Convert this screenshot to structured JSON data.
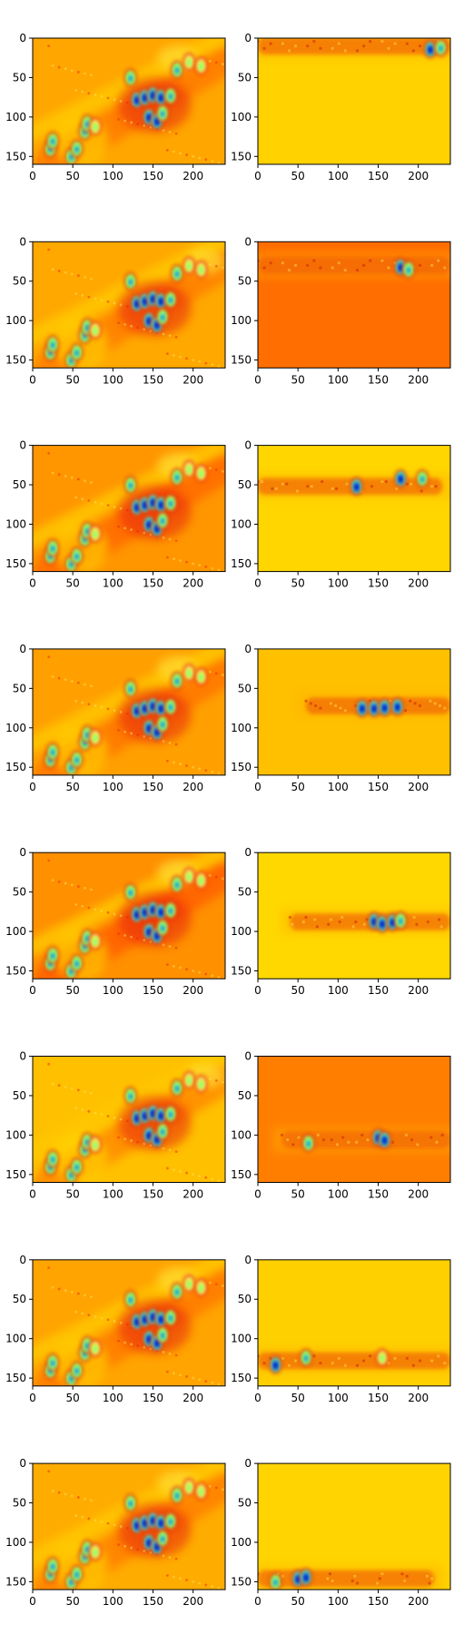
{
  "chart_data": {
    "type": "heatmap",
    "layout": {
      "rows": 8,
      "cols": 2
    },
    "colormap": "jet",
    "xlim": [
      0,
      240
    ],
    "ylim": [
      160,
      0
    ],
    "xticks": [
      0,
      50,
      100,
      150,
      200
    ],
    "yticks": [
      0,
      50,
      100,
      150
    ],
    "colors": {
      "base_orange": "#ff9a00",
      "base_light": "#ffc400",
      "base_yellow": "#ffd400",
      "dark_orange": "#ff6e00",
      "red": "#e8280a",
      "cyan": "#55ffaa",
      "blue": "#0038ff",
      "navy": "#000096"
    },
    "panels": [
      {
        "row": 1,
        "col": 1,
        "kind": "full",
        "background": "#ffa600",
        "band": "#ff7a00",
        "accent_x": 180
      },
      {
        "row": 1,
        "col": 2,
        "kind": "band",
        "background": "#ffd200",
        "band_y": 10,
        "band_color": "#e8320a",
        "x_from": 0,
        "x_to": 240,
        "hotspots": [
          {
            "x": 215,
            "y": 14,
            "c": "dark"
          },
          {
            "x": 228,
            "y": 12,
            "c": "mid"
          }
        ]
      },
      {
        "row": 2,
        "col": 1,
        "kind": "full",
        "background": "#ffa800",
        "band": "#ff7e00",
        "accent_x": 215
      },
      {
        "row": 2,
        "col": 2,
        "kind": "band",
        "background": "#ff6e00",
        "band_y": 30,
        "band_color": "#e8280a",
        "x_from": 0,
        "x_to": 240,
        "hotspots": [
          {
            "x": 178,
            "y": 32,
            "c": "dark"
          },
          {
            "x": 188,
            "y": 35,
            "c": "mid"
          }
        ]
      },
      {
        "row": 3,
        "col": 1,
        "kind": "full",
        "background": "#ff9600",
        "band": "#ff6a00",
        "accent_x": 180
      },
      {
        "row": 3,
        "col": 2,
        "kind": "band",
        "background": "#ffd600",
        "band_y": 52,
        "band_color": "#e8360a",
        "x_from": 0,
        "x_to": 230,
        "hotspots": [
          {
            "x": 123,
            "y": 52,
            "c": "dark"
          },
          {
            "x": 178,
            "y": 42,
            "c": "dark"
          },
          {
            "x": 205,
            "y": 42,
            "c": "mid"
          }
        ]
      },
      {
        "row": 4,
        "col": 1,
        "kind": "full",
        "background": "#ffa000",
        "band": "#ff7600",
        "accent_x": 180
      },
      {
        "row": 4,
        "col": 2,
        "kind": "band",
        "background": "#ffc000",
        "band_y": 72,
        "band_color": "#e8300a",
        "x_from": 60,
        "x_to": 240,
        "hotspots": [
          {
            "x": 130,
            "y": 75,
            "c": "dark"
          },
          {
            "x": 145,
            "y": 75,
            "c": "dark"
          },
          {
            "x": 158,
            "y": 74,
            "c": "dark"
          },
          {
            "x": 174,
            "y": 73,
            "c": "dark"
          }
        ]
      },
      {
        "row": 5,
        "col": 1,
        "kind": "full",
        "background": "#ff9000",
        "band": "#ff6000",
        "accent_x": 180
      },
      {
        "row": 5,
        "col": 2,
        "kind": "band",
        "background": "#ffd800",
        "band_y": 88,
        "band_color": "#e8380a",
        "x_from": 40,
        "x_to": 240,
        "hotspots": [
          {
            "x": 145,
            "y": 87,
            "c": "dark"
          },
          {
            "x": 155,
            "y": 90,
            "c": "dark"
          },
          {
            "x": 168,
            "y": 88,
            "c": "dark"
          },
          {
            "x": 178,
            "y": 86,
            "c": "mid"
          }
        ]
      },
      {
        "row": 6,
        "col": 1,
        "kind": "full",
        "background": "#ffc000",
        "band": "#ff8a00",
        "accent_x": 215
      },
      {
        "row": 6,
        "col": 2,
        "kind": "band",
        "background": "#ff7e00",
        "band_y": 106,
        "band_color": "#e8300a",
        "x_from": 30,
        "x_to": 240,
        "hotspots": [
          {
            "x": 63,
            "y": 110,
            "c": "mid"
          },
          {
            "x": 150,
            "y": 103,
            "c": "dark"
          },
          {
            "x": 158,
            "y": 106,
            "c": "dark"
          }
        ]
      },
      {
        "row": 7,
        "col": 1,
        "kind": "full",
        "background": "#ffa400",
        "band": "#ff7a00",
        "accent_x": 180
      },
      {
        "row": 7,
        "col": 2,
        "kind": "band",
        "background": "#ffd000",
        "band_y": 128,
        "band_color": "#e8340a",
        "x_from": 0,
        "x_to": 240,
        "hotspots": [
          {
            "x": 22,
            "y": 133,
            "c": "dark"
          },
          {
            "x": 60,
            "y": 124,
            "c": "mid"
          },
          {
            "x": 155,
            "y": 124,
            "c": "light"
          }
        ]
      },
      {
        "row": 8,
        "col": 1,
        "kind": "full",
        "background": "#ffac00",
        "band": "#ff8000",
        "accent_x": 180
      },
      {
        "row": 8,
        "col": 2,
        "kind": "band",
        "background": "#ffd400",
        "band_y": 146,
        "band_color": "#e8340a",
        "x_from": 0,
        "x_to": 220,
        "hotspots": [
          {
            "x": 22,
            "y": 150,
            "c": "mid"
          },
          {
            "x": 50,
            "y": 146,
            "c": "dark"
          },
          {
            "x": 60,
            "y": 144,
            "c": "dark"
          }
        ]
      }
    ],
    "common_features": {
      "diagonal_streaks": [
        {
          "x0": 20,
          "y0": 160,
          "x1": 235,
          "y1": 30
        },
        {
          "x0": 0,
          "y0": 120,
          "x1": 235,
          "y1": 0
        }
      ],
      "hot_spots": [
        {
          "x": 22,
          "y": 140,
          "c": "mid"
        },
        {
          "x": 25,
          "y": 130,
          "c": "mid"
        },
        {
          "x": 48,
          "y": 150,
          "c": "mid"
        },
        {
          "x": 55,
          "y": 140,
          "c": "mid"
        },
        {
          "x": 65,
          "y": 118,
          "c": "mid"
        },
        {
          "x": 68,
          "y": 108,
          "c": "mid"
        },
        {
          "x": 78,
          "y": 112,
          "c": "light"
        },
        {
          "x": 122,
          "y": 50,
          "c": "mid"
        },
        {
          "x": 130,
          "y": 78,
          "c": "dark"
        },
        {
          "x": 140,
          "y": 75,
          "c": "dark"
        },
        {
          "x": 150,
          "y": 72,
          "c": "dark"
        },
        {
          "x": 160,
          "y": 75,
          "c": "dark"
        },
        {
          "x": 172,
          "y": 73,
          "c": "mid"
        },
        {
          "x": 145,
          "y": 100,
          "c": "dark"
        },
        {
          "x": 155,
          "y": 105,
          "c": "dark"
        },
        {
          "x": 162,
          "y": 95,
          "c": "mid"
        },
        {
          "x": 180,
          "y": 40,
          "c": "mid"
        },
        {
          "x": 195,
          "y": 30,
          "c": "light"
        },
        {
          "x": 210,
          "y": 35,
          "c": "light"
        }
      ]
    }
  }
}
